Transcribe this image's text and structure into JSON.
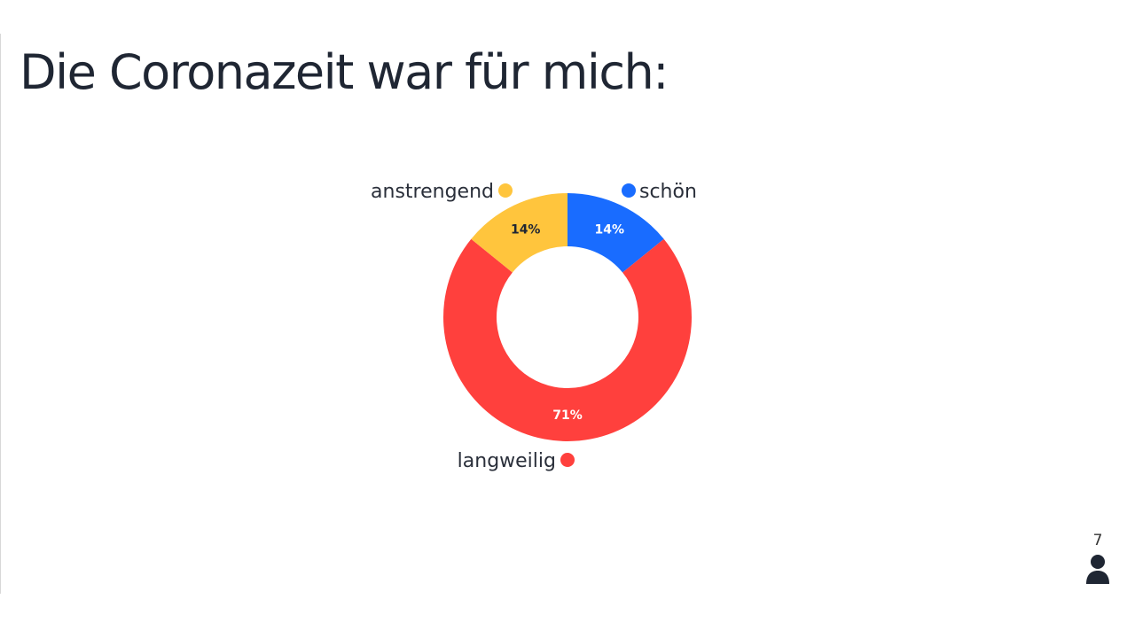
{
  "title": "Die Coronazeit war für mich:",
  "participant_count": "7",
  "chart_data": {
    "type": "pie",
    "variant": "donut",
    "title": "Die Coronazeit war für mich:",
    "slices": [
      {
        "label": "schön",
        "value": 14,
        "display": "14%",
        "color": "#196cff",
        "text_color": "#ffffff",
        "legend_side": "right"
      },
      {
        "label": "langweilig",
        "value": 71,
        "display": "71%",
        "color": "#ff403d",
        "text_color": "#ffffff",
        "legend_side": "left"
      },
      {
        "label": "anstrengend",
        "value": 14,
        "display": "14%",
        "color": "#ffc53d",
        "text_color": "#1f2633",
        "legend_side": "left"
      }
    ]
  }
}
